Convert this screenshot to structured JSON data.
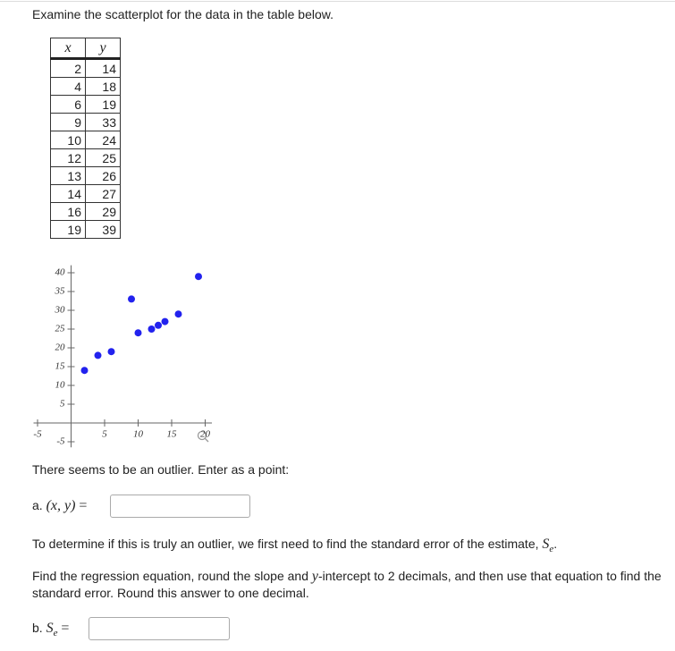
{
  "intro": "Examine the scatterplot for the data in the table below.",
  "table": {
    "headers": [
      "x",
      "y"
    ],
    "rows": [
      [
        2,
        14
      ],
      [
        4,
        18
      ],
      [
        6,
        19
      ],
      [
        9,
        33
      ],
      [
        10,
        24
      ],
      [
        12,
        25
      ],
      [
        13,
        26
      ],
      [
        14,
        27
      ],
      [
        16,
        29
      ],
      [
        19,
        39
      ]
    ]
  },
  "chart_data": {
    "type": "scatter",
    "x": [
      2,
      4,
      6,
      9,
      10,
      12,
      13,
      14,
      16,
      19
    ],
    "values": [
      14,
      18,
      19,
      33,
      24,
      25,
      26,
      27,
      29,
      39
    ],
    "color": "#2222ee",
    "xlim": [
      -5.6,
      21
    ],
    "ylim": [
      -6.5,
      42
    ],
    "xticks": [
      -5,
      5,
      10,
      15,
      20
    ],
    "yticks": [
      -5,
      5,
      10,
      15,
      20,
      25,
      30,
      35,
      40
    ]
  },
  "outlier_prompt": "There seems to be an outlier. Enter as a point:",
  "part_a": {
    "label": "a.",
    "math": "(x, y)",
    "equals": "="
  },
  "se_intro": {
    "text": "To determine if this is truly an outlier, we first need to find the standard error of the estimate,",
    "symbol": "S",
    "subscript": "e",
    "end": "."
  },
  "instructions": {
    "before": "Find the regression equation, round the slope and",
    "var": "y",
    "after": "-intercept to 2 decimals, and then use that equation to find the standard error. Round this answer to one decimal."
  },
  "part_b": {
    "label": "b.",
    "symbol": "S",
    "subscript": "e",
    "equals": "="
  }
}
